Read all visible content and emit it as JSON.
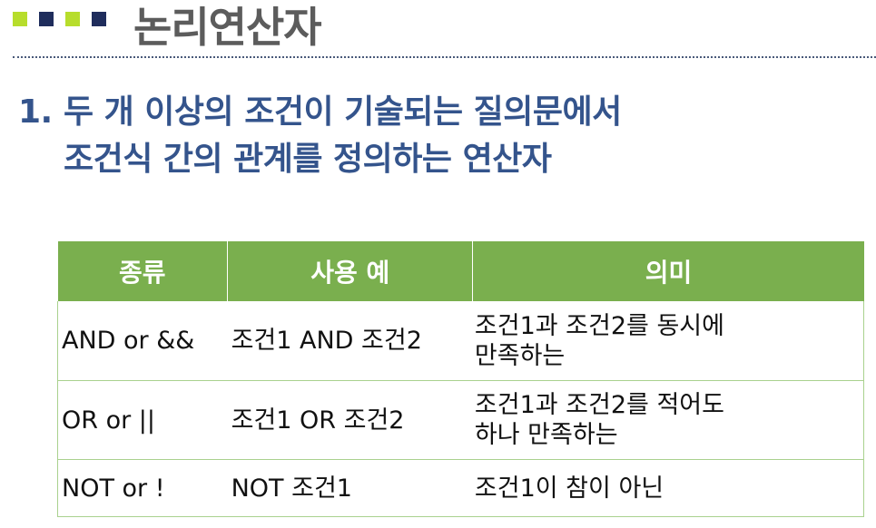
{
  "header": {
    "title": "논리연산자",
    "squares": [
      {
        "color": "#b7dd2c"
      },
      {
        "color": "#1f2d5c"
      },
      {
        "color": "#b7dd2c"
      },
      {
        "color": "#1f2d5c"
      }
    ]
  },
  "heading": {
    "number": "1.",
    "line1": "두 개 이상의 조건이 기술되는 질의문에서",
    "line2": "조건식 간의 관계를 정의하는 연산자"
  },
  "table": {
    "columns": [
      "종류",
      "사용 예",
      "의미"
    ],
    "rows": [
      {
        "type": "AND or &&",
        "example": "조건1 AND 조건2",
        "meaning_1": "조건1과 조건2를 동시에",
        "meaning_2": "만족하는"
      },
      {
        "type": "OR or ||",
        "example": "조건1 OR 조건2",
        "meaning_1": "조건1과 조건2를 적어도",
        "meaning_2": "하나 만족하는"
      },
      {
        "type": "NOT or !",
        "example": "NOT 조건1",
        "meaning_1": "조건1이 참이 아닌",
        "meaning_2": ""
      }
    ]
  }
}
